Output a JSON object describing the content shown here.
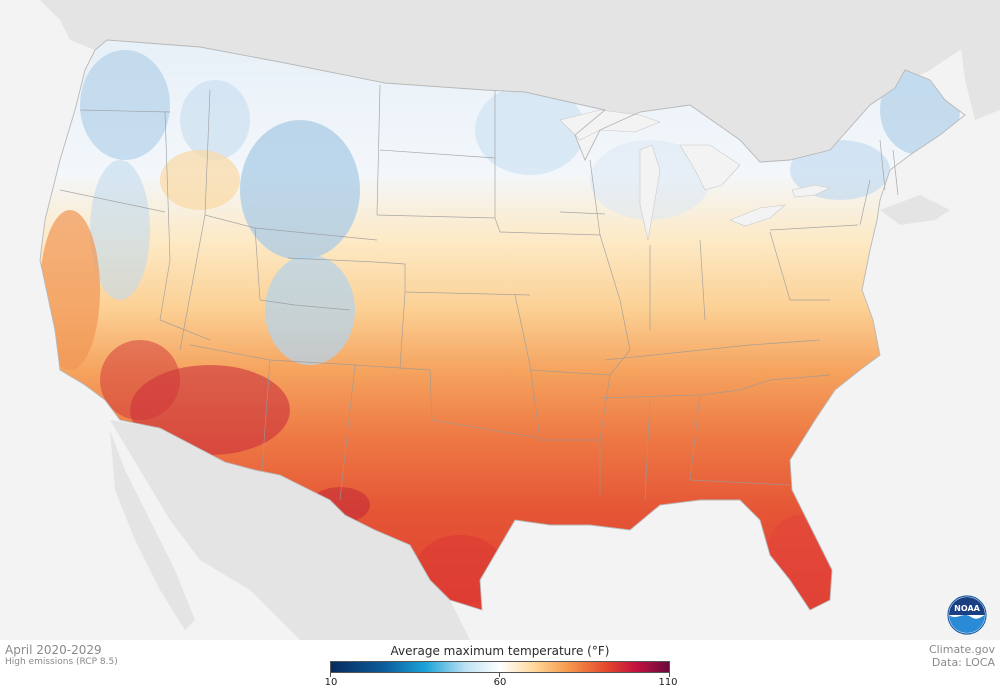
{
  "map": {
    "legend_title": "Average maximum temperature (°F)",
    "legend_min": "10",
    "legend_mid": "60",
    "legend_max": "110",
    "colors": {
      "cold": "#0c5e9d",
      "cool": "#bfe2f3",
      "neutral": "#ffffff",
      "warm": "#f69a4d",
      "hot": "#e2452c",
      "hottest": "#6b0a3b",
      "land_outside": "#e2e2e2",
      "water": "#f3f3f3"
    }
  },
  "footer": {
    "period": "April 2020-2029",
    "scenario": "High emissions (RCP 8.5)",
    "site": "Climate.gov",
    "data_source": "Data: LOCA"
  },
  "logo": {
    "text": "NOAA",
    "icon": "noaa-logo-icon"
  }
}
